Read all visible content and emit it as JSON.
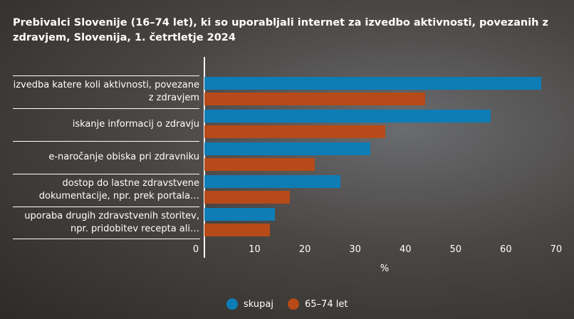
{
  "chart_data": {
    "type": "bar",
    "orientation": "horizontal",
    "title": "Prebivalci Slovenije (16–74 let), ki so uporabljali internet za izvedbo aktivnosti, povezanih z zdravjem, Slovenija, 1. četrtletje 2024",
    "categories": [
      "izvedba katere koli aktivnosti, povezane z zdravjem",
      "iskanje informacij o zdravju",
      "e-naročanje obiska pri zdravniku",
      "dostop do lastne zdravstvene dokumentacije, npr. prek portala…",
      "uporaba drugih zdravstvenih storitev, npr. pridobitev recepta ali…"
    ],
    "series": [
      {
        "name": "skupaj",
        "color": "#0e7db6",
        "values": [
          67,
          57,
          33,
          27,
          14
        ]
      },
      {
        "name": "65–74 let",
        "color": "#b64a18",
        "values": [
          44,
          36,
          22,
          17,
          13
        ]
      }
    ],
    "x_label": "%",
    "xlim": [
      0,
      72
    ],
    "xticks": [
      0,
      10,
      20,
      30,
      40,
      50,
      60,
      70
    ],
    "legend": "bottom"
  }
}
